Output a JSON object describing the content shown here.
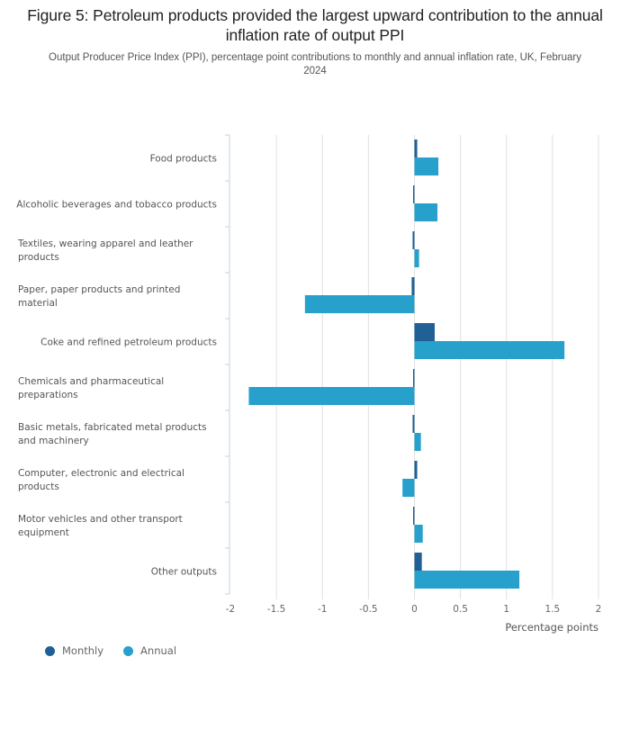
{
  "header": {
    "title": "Figure 5: Petroleum products provided the largest upward contribution to the annual inflation rate of output PPI",
    "subtitle": "Output Producer Price Index (PPI), percentage point contributions to monthly and annual inflation rate, UK, February 2024"
  },
  "legend": {
    "items": [
      {
        "label": "Monthly",
        "color": "#206095"
      },
      {
        "label": "Annual",
        "color": "#27a0cc"
      }
    ]
  },
  "chart_data": {
    "type": "bar",
    "orientation": "horizontal",
    "title": "Figure 5: Petroleum products provided the largest upward contribution to the annual inflation rate of output PPI",
    "subtitle": "Output Producer Price Index (PPI), percentage point contributions to monthly and annual inflation rate, UK, February 2024",
    "xlabel": "Percentage points",
    "ylabel": "",
    "xlim": [
      -2,
      2
    ],
    "xticks": [
      -2,
      -1.5,
      -1,
      -0.5,
      0,
      0.5,
      1,
      1.5,
      2
    ],
    "xtick_labels": [
      "-2",
      "-1.5",
      "-1",
      "-0.5",
      "0",
      "0.5",
      "1",
      "1.5",
      "2"
    ],
    "grid": true,
    "legend_position": "bottom-left",
    "categories": [
      "Food products",
      "Alcoholic beverages and tobacco products",
      "Textiles, wearing apparel and leather products",
      "Paper, paper products and printed material",
      "Coke and refined petroleum products",
      "Chemicals and pharmaceutical preparations",
      "Basic metals, fabricated metal products and machinery",
      "Computer, electronic and electrical products",
      "Motor vehicles and other transport equipment",
      "Other outputs"
    ],
    "category_label_lines": [
      [
        "Food products"
      ],
      [
        "Alcoholic beverages and tobacco products"
      ],
      [
        "Textiles, wearing apparel and leather",
        "products"
      ],
      [
        "Paper, paper products and printed",
        "material"
      ],
      [
        "Coke and refined petroleum products"
      ],
      [
        "Chemicals and pharmaceutical",
        "preparations"
      ],
      [
        "Basic metals, fabricated metal products",
        "and machinery"
      ],
      [
        "Computer, electronic and electrical",
        "products"
      ],
      [
        "Motor vehicles and other transport",
        "equipment"
      ],
      [
        "Other outputs"
      ]
    ],
    "series": [
      {
        "name": "Monthly",
        "color": "#206095",
        "values": [
          0.03,
          -0.01,
          -0.02,
          -0.03,
          0.22,
          -0.01,
          -0.02,
          0.03,
          -0.01,
          0.08
        ]
      },
      {
        "name": "Annual",
        "color": "#27a0cc",
        "values": [
          0.26,
          0.25,
          0.05,
          -1.19,
          1.63,
          -1.8,
          0.07,
          -0.13,
          0.09,
          1.14
        ]
      }
    ]
  }
}
